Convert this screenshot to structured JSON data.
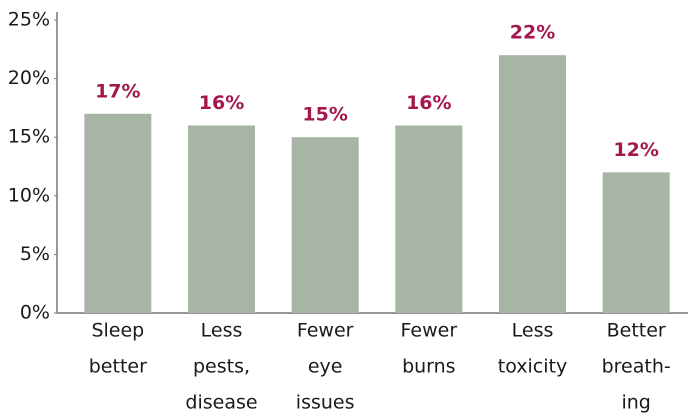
{
  "chart_data": {
    "type": "bar",
    "categories": [
      [
        "Sleep",
        "better"
      ],
      [
        "Less",
        "pests,",
        "disease"
      ],
      [
        "Fewer",
        "eye",
        "issues"
      ],
      [
        "Fewer",
        "burns"
      ],
      [
        "Less",
        "toxicity"
      ],
      [
        "Better",
        "breath-",
        "ing"
      ]
    ],
    "values": [
      17,
      16,
      15,
      16,
      22,
      12
    ],
    "value_labels": [
      "17%",
      "16%",
      "15%",
      "16%",
      "22%",
      "12%"
    ],
    "color": "#a8b5a6",
    "value_label_color": "#a3174d",
    "ylim": [
      0,
      25
    ],
    "yticks": [
      {
        "value": 0,
        "label": "0%"
      },
      {
        "value": 5,
        "label": "5%"
      },
      {
        "value": 10,
        "label": "10%"
      },
      {
        "value": 15,
        "label": "15%"
      },
      {
        "value": 20,
        "label": "20%"
      },
      {
        "value": 25,
        "label": "25%"
      }
    ],
    "grid": false
  }
}
